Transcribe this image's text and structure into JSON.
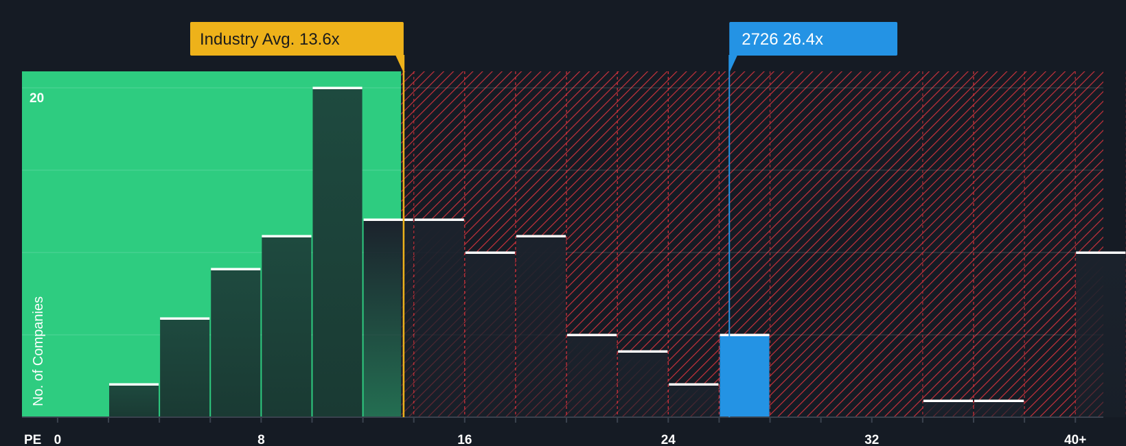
{
  "chart_data": {
    "type": "bar",
    "x_axis_label": "PE",
    "y_axis_label": "No. of Companies",
    "x_ticks": [
      "0",
      "8",
      "16",
      "24",
      "32",
      "40+"
    ],
    "y_ticks": [
      "20"
    ],
    "ylim": [
      0,
      21
    ],
    "xlim": [
      -1.4,
      41.1
    ],
    "bin_width": 2,
    "bins": [
      {
        "x_start": 2,
        "count": 2
      },
      {
        "x_start": 4,
        "count": 6
      },
      {
        "x_start": 6,
        "count": 9
      },
      {
        "x_start": 8,
        "count": 11
      },
      {
        "x_start": 10,
        "count": 20
      },
      {
        "x_start": 12,
        "count": 12
      },
      {
        "x_start": 14,
        "count": 12
      },
      {
        "x_start": 16,
        "count": 10
      },
      {
        "x_start": 18,
        "count": 11
      },
      {
        "x_start": 20,
        "count": 5
      },
      {
        "x_start": 22,
        "count": 4
      },
      {
        "x_start": 24,
        "count": 2
      },
      {
        "x_start": 26,
        "count": 5
      },
      {
        "x_start": 34,
        "count": 1
      },
      {
        "x_start": 36,
        "count": 1
      },
      {
        "x_start": 40,
        "count": 10
      }
    ],
    "highlight_bin_index": 12,
    "industry_avg": {
      "label": "Industry Avg. 13.6x",
      "value": 13.6
    },
    "company": {
      "label": "2726 26.4x",
      "value": 26.4
    },
    "grid": true,
    "colors": {
      "background": "#151b24",
      "fair_zone": "#2ecc80",
      "over_zone_stripe": "#c8323c",
      "bar_in_fair_zone": "#1e4a3f",
      "bar_in_over_zone": "#1b222c",
      "highlight_bar": "#2493e4",
      "industry_callout": "#eeb21a",
      "company_callout": "#2493e4",
      "bar_cap": "#ffffff"
    }
  }
}
